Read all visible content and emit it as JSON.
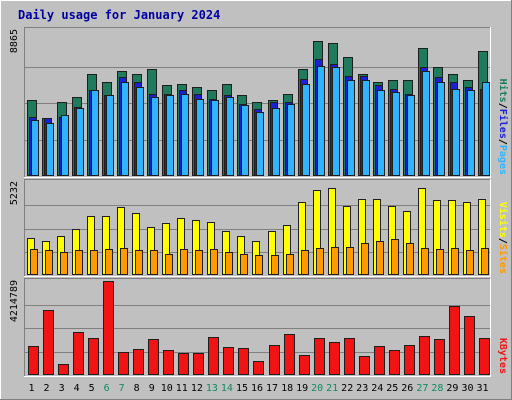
{
  "chart_data": {
    "type": "bar",
    "title": "Daily usage for January 2024",
    "categories": [
      "1",
      "2",
      "3",
      "4",
      "5",
      "6",
      "7",
      "8",
      "9",
      "10",
      "11",
      "12",
      "13",
      "14",
      "15",
      "16",
      "17",
      "18",
      "19",
      "20",
      "21",
      "22",
      "23",
      "24",
      "25",
      "26",
      "27",
      "28",
      "29",
      "30",
      "31"
    ],
    "weekend_days": [
      6,
      7,
      13,
      14,
      20,
      21,
      27,
      28
    ],
    "panels": [
      {
        "id": "hits",
        "ymax_label": "8865",
        "ymax": 8865,
        "side_labels": [
          "Pages",
          "Files",
          "Hits"
        ],
        "series": [
          {
            "name": "Hits",
            "color": "#1f7a5e",
            "values": [
              4600,
              3550,
              4500,
              4800,
              6200,
              5700,
              6400,
              6200,
              6500,
              5500,
              5600,
              5400,
              5200,
              5600,
              4900,
              4500,
              4600,
              4950,
              6500,
              8200,
              8100,
              7200,
              6200,
              5700,
              5800,
              5800,
              7800,
              6600,
              6200,
              5800,
              7600
            ]
          },
          {
            "name": "Files",
            "color": "#1a20d6",
            "values": [
              3600,
              3500,
              3600,
              4200,
              5200,
              4900,
              6000,
              5700,
              5000,
              5000,
              5200,
              5000,
              4700,
              4900,
              4400,
              4050,
              4500,
              4500,
              5900,
              7100,
              6800,
              6100,
              6100,
              5500,
              5300,
              5000,
              6600,
              6000,
              5700,
              5400,
              5300
            ]
          },
          {
            "name": "Pages",
            "color": "#30b4ff",
            "values": [
              3400,
              3200,
              3700,
              4100,
              5200,
              4900,
              5700,
              5400,
              4800,
              4900,
              5000,
              4700,
              4600,
              4800,
              4300,
              3900,
              4100,
              4400,
              5600,
              6700,
              6600,
              5800,
              5800,
              5200,
              5100,
              4900,
              6400,
              5700,
              5300,
              5200,
              5700
            ]
          }
        ]
      },
      {
        "id": "visits",
        "ymax_label": "5232",
        "ymax": 5232,
        "side_labels": [
          "Sites",
          "Visits"
        ],
        "series": [
          {
            "name": "Visits",
            "color": "#ffff00",
            "values": [
              2100,
              1900,
              2200,
              2600,
              3300,
              3300,
              3800,
              3500,
              2700,
              2900,
              3200,
              3100,
              3000,
              2500,
              2200,
              1900,
              2500,
              2800,
              4100,
              4800,
              4900,
              3900,
              4300,
              4300,
              3900,
              3600,
              4900,
              4200,
              4200,
              4100,
              4300
            ]
          },
          {
            "name": "Sites",
            "color": "#ff9a00",
            "values": [
              1450,
              1400,
              1300,
              1400,
              1400,
              1450,
              1500,
              1400,
              1400,
              1200,
              1450,
              1400,
              1450,
              1300,
              1200,
              1100,
              1100,
              1200,
              1400,
              1500,
              1600,
              1600,
              1800,
              1900,
              2000,
              1800,
              1500,
              1450,
              1500,
              1400,
              1500
            ]
          }
        ]
      },
      {
        "id": "kbytes",
        "ymax_label": "4214789",
        "ymax": 4214789,
        "side_labels": [
          "KBytes"
        ],
        "series": [
          {
            "name": "KBytes",
            "color": "#f01414",
            "values": [
              1300000,
              2900000,
              500000,
              1950000,
              1650000,
              4214789,
              1050000,
              1150000,
              1600000,
              1100000,
              1000000,
              1000000,
              1700000,
              1250000,
              1200000,
              650000,
              1350000,
              1850000,
              900000,
              1650000,
              1500000,
              1650000,
              850000,
              1300000,
              1100000,
              1350000,
              1750000,
              1600000,
              3100000,
              2650000,
              1650000
            ]
          }
        ]
      }
    ]
  },
  "colors": {
    "background": "#c0c0c0",
    "frame_light": "#ffffff",
    "frame_dark": "#808080",
    "title_text": "#0000a0",
    "weekday_text": "#000000",
    "weekend_text": "#0f8a64"
  }
}
